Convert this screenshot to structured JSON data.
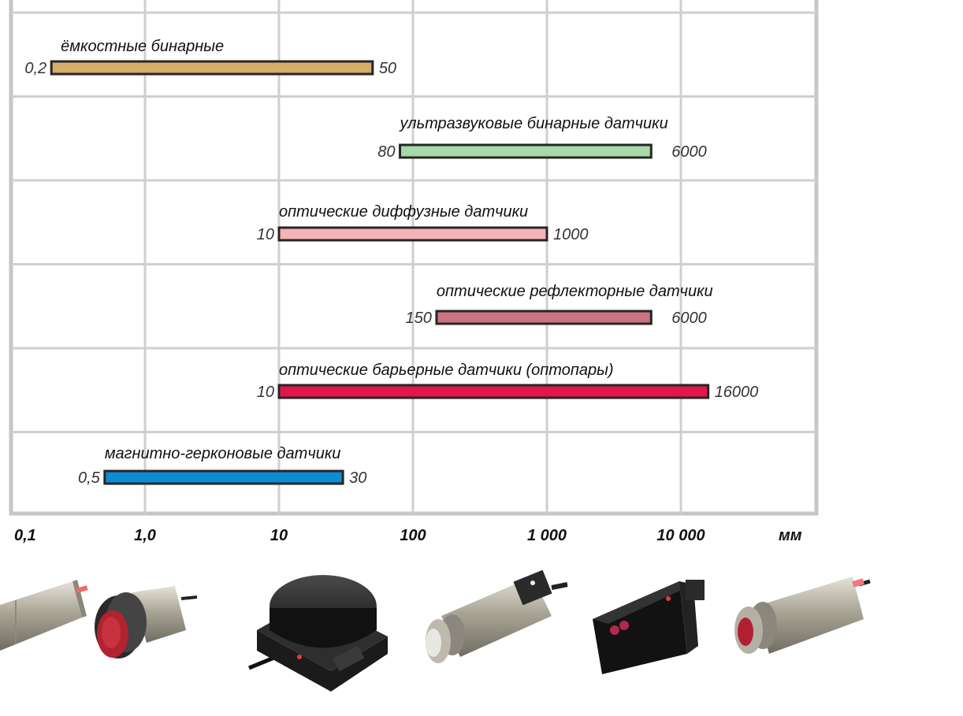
{
  "chart_data": {
    "type": "bar",
    "orientation": "horizontal-range",
    "x_scale": "log",
    "xlim": [
      0.1,
      30000
    ],
    "x_ticks": [
      {
        "value": 0.1,
        "label": "0,1"
      },
      {
        "value": 1,
        "label": "1,0"
      },
      {
        "value": 10,
        "label": "10"
      },
      {
        "value": 100,
        "label": "100"
      },
      {
        "value": 1000,
        "label": "1 000"
      },
      {
        "value": 10000,
        "label": "10 000"
      }
    ],
    "x_unit": "мм",
    "grid": true,
    "ranges": [
      {
        "name": "ёмкостные бинарные",
        "min": 0.2,
        "max": 50,
        "min_label": "0,2",
        "max_label": "50",
        "color": "#D4AE6A"
      },
      {
        "name": "ультразвуковые бинарные датчики",
        "min": 80,
        "max": 6000,
        "min_label": "80",
        "max_label": "6000",
        "color": "#A6D8AA"
      },
      {
        "name": "оптические диффузные датчики",
        "min": 10,
        "max": 1000,
        "min_label": "10",
        "max_label": "1000",
        "color": "#F4B3B6"
      },
      {
        "name": "оптические рефлекторные датчики",
        "min": 150,
        "max": 6000,
        "min_label": "150",
        "max_label": "6000",
        "color": "#CC7381"
      },
      {
        "name": "оптические барьерные датчики (оптопары)",
        "min": 10,
        "max": 16000,
        "min_label": "10",
        "max_label": "16000",
        "color": "#E2164A"
      },
      {
        "name": "магнитно-герконовые датчики",
        "min": 0.5,
        "max": 30,
        "min_label": "0,5",
        "max_label": "30",
        "color": "#0C8CD1"
      }
    ]
  },
  "products": [
    {
      "icon": "cylindrical-sensor-icon"
    },
    {
      "icon": "capacitive-sensor-icon"
    },
    {
      "icon": "ultrasonic-square-sensor-icon"
    },
    {
      "icon": "optical-diffuse-sensor-icon"
    },
    {
      "icon": "optical-reflector-sensor-icon"
    },
    {
      "icon": "optical-barrier-sensor-icon"
    }
  ]
}
